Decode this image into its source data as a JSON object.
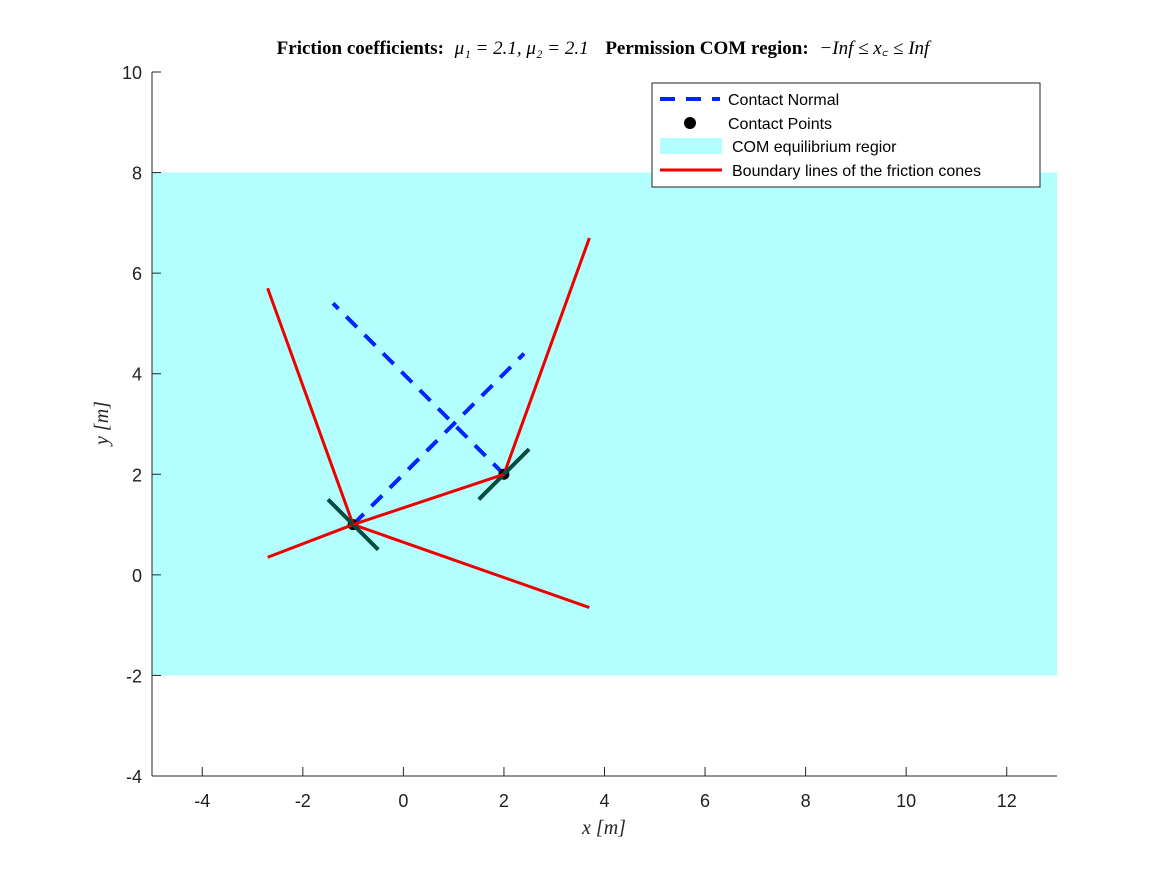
{
  "chart_data": {
    "type": "line",
    "title": "Friction coefficients: μ₁ = 2.1, μ₂ = 2.1  Permission COM region: −Inf ≤ x_c ≤ Inf",
    "title_parts": {
      "bold1": "Friction coefficients:",
      "math1": "μ₁ = 2.1, μ₂ = 2.1",
      "bold2": "Permission COM region:",
      "math2": "−Inf ≤ x꜀ ≤ Inf"
    },
    "xlabel": "x [m]",
    "ylabel": "y [m]",
    "xlim": [
      -5,
      13
    ],
    "ylim": [
      -4,
      10
    ],
    "xticks": [
      -4,
      -2,
      0,
      2,
      4,
      6,
      8,
      10,
      12
    ],
    "yticks": [
      -4,
      -2,
      0,
      2,
      4,
      6,
      8,
      10
    ],
    "grid": false,
    "legend_position": "top-right",
    "legend": [
      "Contact Normal",
      "Contact Points",
      "COM equilibrium regior",
      "Boundary lines of the friction cones"
    ],
    "region": {
      "name": "COM equilibrium regior",
      "x": [
        -5,
        13
      ],
      "y": [
        -2,
        8
      ],
      "color": "#b3ffff"
    },
    "series": [
      {
        "name": "Contact Normal",
        "style": "dashed",
        "color": "#0022ff",
        "lines": [
          {
            "x": [
              -1.0,
              2.4
            ],
            "y": [
              1.0,
              4.4
            ]
          },
          {
            "x": [
              2.0,
              -1.4
            ],
            "y": [
              2.0,
              5.4
            ]
          }
        ]
      },
      {
        "name": "Contact Points",
        "style": "marker",
        "color": "#000000",
        "points": [
          {
            "x": -1.0,
            "y": 1.0
          },
          {
            "x": 2.0,
            "y": 2.0
          }
        ]
      },
      {
        "name": "Boundary lines of the friction cones",
        "style": "solid",
        "color": "#ee0000",
        "lines": [
          {
            "x": [
              -1.0,
              -2.7
            ],
            "y": [
              1.0,
              5.7
            ]
          },
          {
            "x": [
              -1.0,
              -2.7
            ],
            "y": [
              1.0,
              0.35
            ]
          },
          {
            "x": [
              2.0,
              3.7
            ],
            "y": [
              2.0,
              6.7
            ]
          },
          {
            "x": [
              -1.0,
              3.7
            ],
            "y": [
              1.0,
              -0.65
            ]
          }
        ]
      },
      {
        "style": "solid",
        "color": "#004d40",
        "lines": [
          {
            "x": [
              -1.5,
              -0.5
            ],
            "y": [
              1.5,
              0.5
            ]
          },
          {
            "x": [
              1.5,
              2.5
            ],
            "y": [
              1.5,
              2.5
            ]
          }
        ]
      },
      {
        "style": "solid",
        "color": "#ee0000",
        "lines": [
          {
            "x": [
              -1.0,
              2.0
            ],
            "y": [
              1.0,
              2.0
            ]
          }
        ]
      }
    ]
  }
}
